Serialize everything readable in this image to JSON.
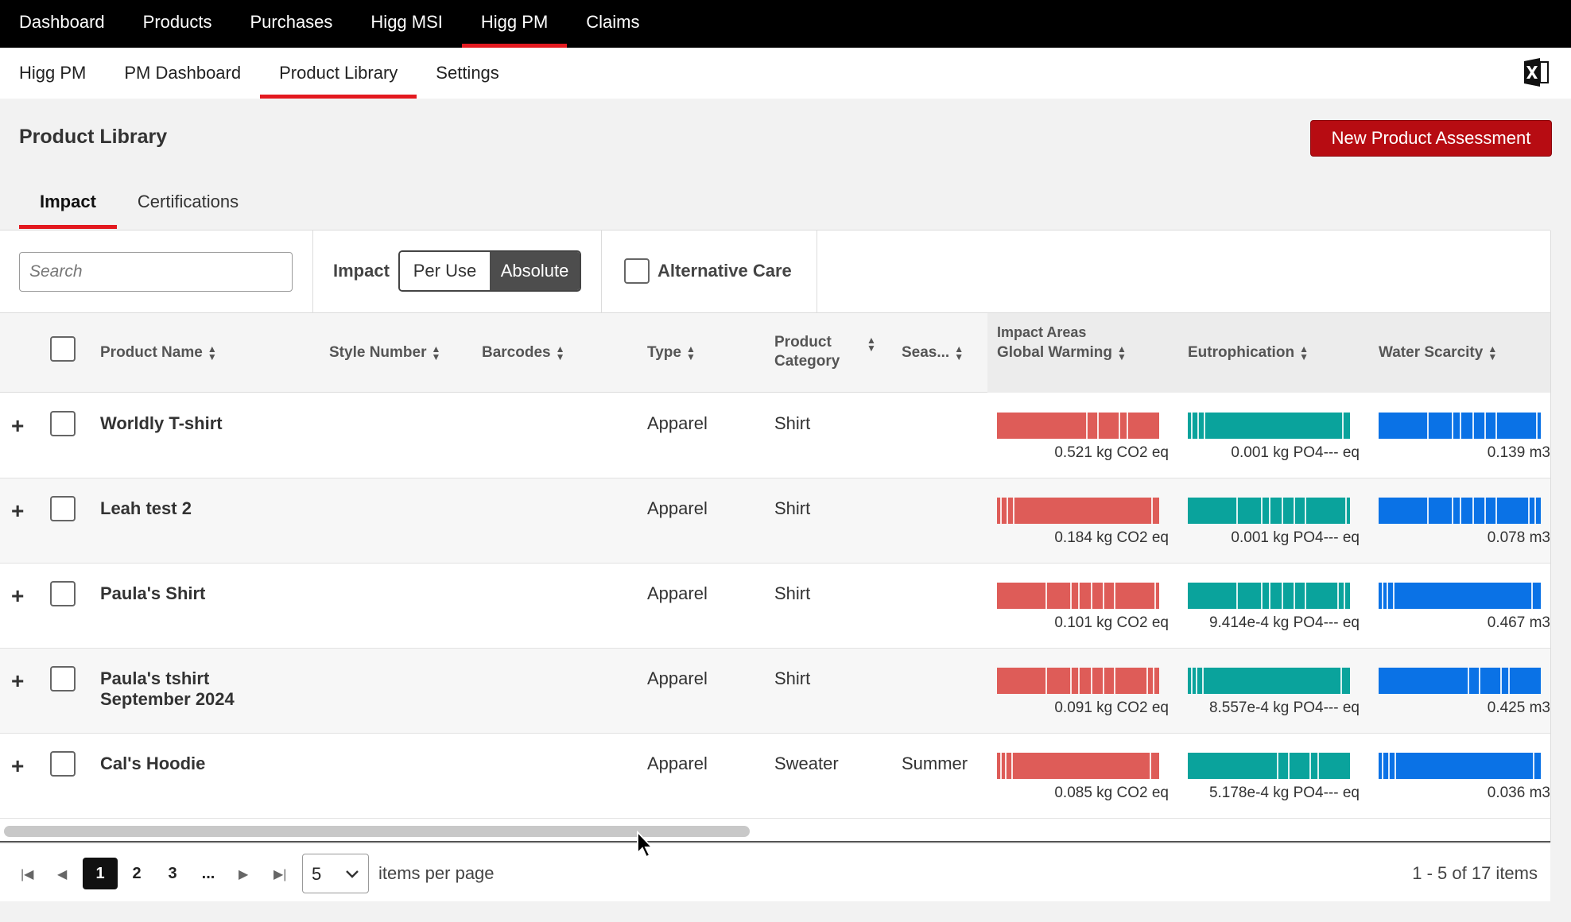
{
  "top_nav": {
    "items": [
      "Dashboard",
      "Products",
      "Purchases",
      "Higg MSI",
      "Higg PM",
      "Claims"
    ],
    "active": "Higg PM"
  },
  "sub_nav": {
    "items": [
      "Higg PM",
      "PM Dashboard",
      "Product Library",
      "Settings"
    ],
    "active": "Product Library"
  },
  "page": {
    "title": "Product Library",
    "new_button": "New Product Assessment"
  },
  "tabs": {
    "items": [
      "Impact",
      "Certifications"
    ],
    "active": "Impact"
  },
  "toolbar": {
    "search_placeholder": "Search",
    "impact_label": "Impact",
    "toggle": [
      "Per Use",
      "Absolute"
    ],
    "toggle_selected": "Absolute",
    "alternative_care": "Alternative Care",
    "alternative_care_checked": false
  },
  "table": {
    "headers": {
      "product_name": "Product Name",
      "style_number": "Style Number",
      "barcodes": "Barcodes",
      "type": "Type",
      "category_line1": "Product",
      "category_line2": "Category",
      "season": "Seas...",
      "impact_areas": "Impact Areas",
      "global_warming": "Global Warming",
      "eutrophication": "Eutrophication",
      "water_scarcity": "Water Scarcity"
    },
    "rows": [
      {
        "name": "Worldly T-shirt",
        "name2": "",
        "type": "Apparel",
        "category": "Shirt",
        "season": "",
        "gw": "0.521 kg CO2 eq",
        "eu": "0.001 kg PO4--- eq",
        "ws": "0.139 m3"
      },
      {
        "name": "Leah test 2",
        "name2": "",
        "type": "Apparel",
        "category": "Shirt",
        "season": "",
        "gw": "0.184 kg CO2 eq",
        "eu": "0.001 kg PO4--- eq",
        "ws": "0.078 m3"
      },
      {
        "name": "Paula's Shirt",
        "name2": "",
        "type": "Apparel",
        "category": "Shirt",
        "season": "",
        "gw": "0.101 kg CO2 eq",
        "eu": "9.414e-4 kg PO4--- eq",
        "ws": "0.467 m3"
      },
      {
        "name": "Paula's tshirt",
        "name2": "September 2024",
        "type": "Apparel",
        "category": "Shirt",
        "season": "",
        "gw": "0.091 kg CO2 eq",
        "eu": "8.557e-4 kg PO4--- eq",
        "ws": "0.425 m3"
      },
      {
        "name": "Cal's Hoodie",
        "name2": "",
        "type": "Apparel",
        "category": "Sweater",
        "season": "Summer",
        "gw": "0.085 kg CO2 eq",
        "eu": "5.178e-4 kg PO4--- eq",
        "ws": "0.036 m3"
      }
    ]
  },
  "colors": {
    "global_warming": "#de5c58",
    "eutrophication": "#0aa39c",
    "water_scarcity": "#0a72e6",
    "accent": "#e3191f",
    "button": "#b70c12"
  },
  "pager": {
    "pages": [
      "1",
      "2",
      "3",
      "..."
    ],
    "current": "1",
    "page_size": "5",
    "per_page_label": "items per page",
    "info": "1 - 5 of 17 items"
  },
  "icons": {
    "export": "excel-icon",
    "first": "first-page-icon",
    "prev": "prev-page-icon",
    "next": "next-page-icon",
    "last": "last-page-icon"
  }
}
